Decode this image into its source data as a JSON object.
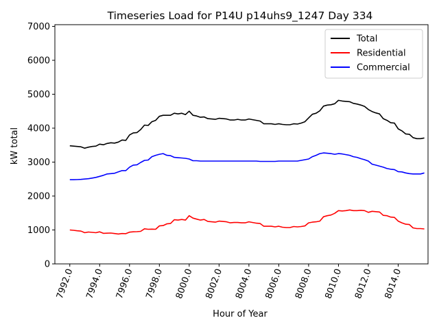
{
  "chart_data": {
    "type": "line",
    "title": "Timeseries Load for P14U p14uhs9_1247  Day 334",
    "xlabel": "Hour of Year",
    "ylabel": "kW total",
    "xlim": [
      7991.0,
      8016.0
    ],
    "ylim": [
      0,
      7050
    ],
    "x_start": 7992.0,
    "x_step": 0.25,
    "xticks": [
      7992,
      7994,
      7996,
      7998,
      8000,
      8002,
      8004,
      8006,
      8008,
      8010,
      8012,
      8014
    ],
    "xtick_labels": [
      "7992.0",
      "7994.0",
      "7996.0",
      "7998.0",
      "8000.0",
      "8002.0",
      "8004.0",
      "8006.0",
      "8008.0",
      "8010.0",
      "8012.0",
      "8014.0"
    ],
    "yticks": [
      0,
      1000,
      2000,
      3000,
      4000,
      5000,
      6000,
      7000
    ],
    "ytick_labels": [
      "0",
      "1000",
      "2000",
      "3000",
      "4000",
      "5000",
      "6000",
      "7000"
    ],
    "legend_position": "top-right",
    "series": [
      {
        "name": "Total",
        "color": "#000000",
        "values": [
          3480,
          3470,
          3460,
          3450,
          3410,
          3440,
          3460,
          3470,
          3530,
          3510,
          3550,
          3570,
          3560,
          3590,
          3650,
          3640,
          3800,
          3860,
          3870,
          3960,
          4090,
          4080,
          4190,
          4230,
          4350,
          4380,
          4380,
          4380,
          4440,
          4420,
          4440,
          4400,
          4500,
          4380,
          4360,
          4320,
          4330,
          4280,
          4270,
          4260,
          4290,
          4280,
          4270,
          4240,
          4240,
          4260,
          4240,
          4240,
          4270,
          4250,
          4230,
          4210,
          4130,
          4130,
          4130,
          4110,
          4130,
          4110,
          4100,
          4100,
          4130,
          4120,
          4150,
          4190,
          4300,
          4410,
          4440,
          4510,
          4650,
          4680,
          4690,
          4720,
          4820,
          4800,
          4790,
          4780,
          4730,
          4710,
          4680,
          4640,
          4550,
          4490,
          4450,
          4420,
          4280,
          4230,
          4160,
          4150,
          3980,
          3920,
          3830,
          3820,
          3720,
          3690,
          3690,
          3710
        ]
      },
      {
        "name": "Residential",
        "color": "#ff0000",
        "values": [
          1000,
          990,
          975,
          965,
          920,
          940,
          930,
          920,
          945,
          900,
          905,
          910,
          895,
          880,
          895,
          890,
          935,
          945,
          950,
          960,
          1035,
          1020,
          1025,
          1020,
          1120,
          1130,
          1180,
          1190,
          1300,
          1290,
          1310,
          1290,
          1420,
          1350,
          1320,
          1290,
          1310,
          1250,
          1240,
          1230,
          1260,
          1250,
          1240,
          1210,
          1220,
          1220,
          1210,
          1210,
          1240,
          1220,
          1200,
          1190,
          1110,
          1110,
          1110,
          1090,
          1110,
          1080,
          1070,
          1070,
          1100,
          1090,
          1100,
          1120,
          1210,
          1230,
          1240,
          1260,
          1390,
          1420,
          1440,
          1490,
          1570,
          1560,
          1570,
          1590,
          1570,
          1570,
          1580,
          1570,
          1520,
          1550,
          1540,
          1530,
          1430,
          1420,
          1380,
          1370,
          1260,
          1210,
          1170,
          1160,
          1060,
          1040,
          1040,
          1030
        ]
      },
      {
        "name": "Commercial",
        "color": "#0000ff",
        "values": [
          2480,
          2480,
          2485,
          2490,
          2500,
          2510,
          2530,
          2550,
          2580,
          2610,
          2650,
          2660,
          2670,
          2710,
          2750,
          2750,
          2850,
          2910,
          2920,
          2990,
          3050,
          3060,
          3160,
          3200,
          3230,
          3250,
          3200,
          3190,
          3140,
          3130,
          3120,
          3110,
          3090,
          3040,
          3040,
          3030,
          3030,
          3030,
          3030,
          3030,
          3030,
          3030,
          3030,
          3030,
          3030,
          3030,
          3030,
          3030,
          3030,
          3030,
          3030,
          3020,
          3020,
          3020,
          3020,
          3020,
          3030,
          3030,
          3030,
          3030,
          3030,
          3030,
          3050,
          3070,
          3090,
          3160,
          3200,
          3250,
          3270,
          3260,
          3250,
          3230,
          3250,
          3240,
          3220,
          3200,
          3160,
          3140,
          3100,
          3070,
          3030,
          2940,
          2910,
          2880,
          2850,
          2810,
          2790,
          2780,
          2720,
          2710,
          2680,
          2660,
          2650,
          2650,
          2650,
          2680
        ]
      }
    ]
  }
}
